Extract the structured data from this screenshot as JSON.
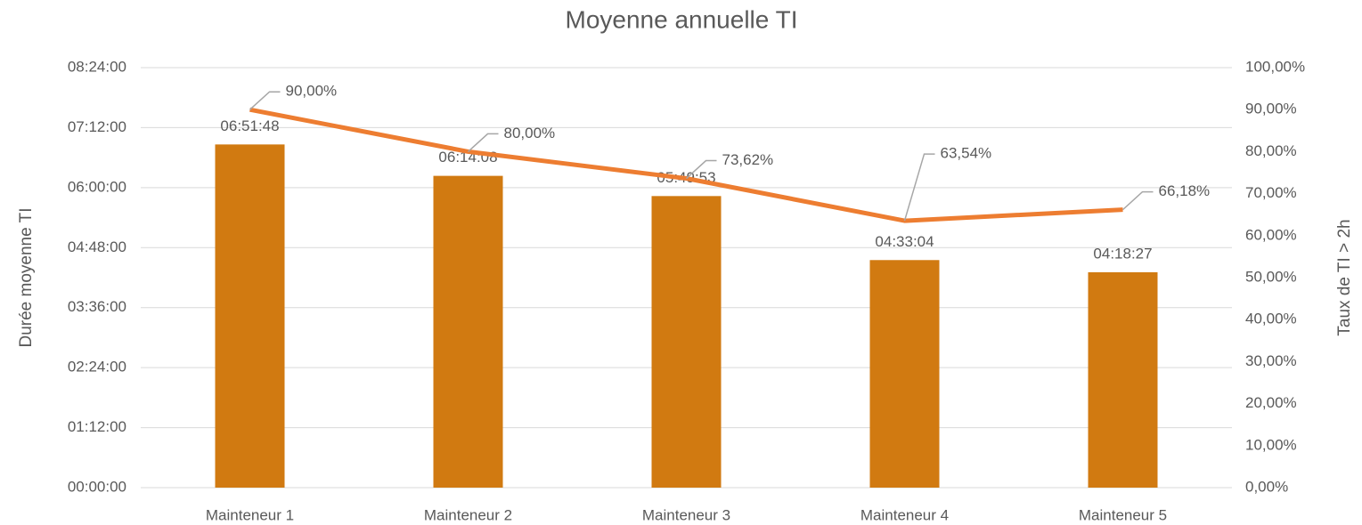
{
  "chart_data": {
    "type": "combo",
    "title": "Moyenne annuelle TI",
    "categories": [
      "Mainteneur 1",
      "Mainteneur 2",
      "Mainteneur 3",
      "Mainteneur 4",
      "Mainteneur 5"
    ],
    "y_label": "Durée moyenne TI",
    "y2_label": "Taux de TI > 2h",
    "ylim": [
      0,
      30240
    ],
    "yticks": [
      {
        "value": 0,
        "label": "00:00:00"
      },
      {
        "value": 4320,
        "label": "01:12:00"
      },
      {
        "value": 8640,
        "label": "02:24:00"
      },
      {
        "value": 12960,
        "label": "03:36:00"
      },
      {
        "value": 17280,
        "label": "04:48:00"
      },
      {
        "value": 21600,
        "label": "06:00:00"
      },
      {
        "value": 25920,
        "label": "07:12:00"
      },
      {
        "value": 30240,
        "label": "08:24:00"
      }
    ],
    "y2lim": [
      0,
      100
    ],
    "y2ticks": [
      {
        "value": 0,
        "label": "0,00%"
      },
      {
        "value": 10,
        "label": "10,00%"
      },
      {
        "value": 20,
        "label": "20,00%"
      },
      {
        "value": 30,
        "label": "30,00%"
      },
      {
        "value": 40,
        "label": "40,00%"
      },
      {
        "value": 50,
        "label": "50,00%"
      },
      {
        "value": 60,
        "label": "60,00%"
      },
      {
        "value": 70,
        "label": "70,00%"
      },
      {
        "value": 80,
        "label": "80,00%"
      },
      {
        "value": 90,
        "label": "90,00%"
      },
      {
        "value": 100,
        "label": "100,00%"
      }
    ],
    "grid": true,
    "series": [
      {
        "type": "bar",
        "color": "#d17a11",
        "values": [
          24708,
          22448,
          20993,
          16384,
          15507
        ],
        "value_labels": [
          "06:51:48",
          "06:14:08",
          "05:49:53",
          "04:33:04",
          "04:18:27"
        ]
      },
      {
        "type": "line",
        "axis": "y2",
        "color": "#ed7d31",
        "values": [
          90,
          80,
          73.62,
          63.54,
          66.18
        ],
        "value_labels": [
          "90,00%",
          "80,00%",
          "73,62%",
          "63,54%",
          "66,18%"
        ]
      }
    ]
  }
}
